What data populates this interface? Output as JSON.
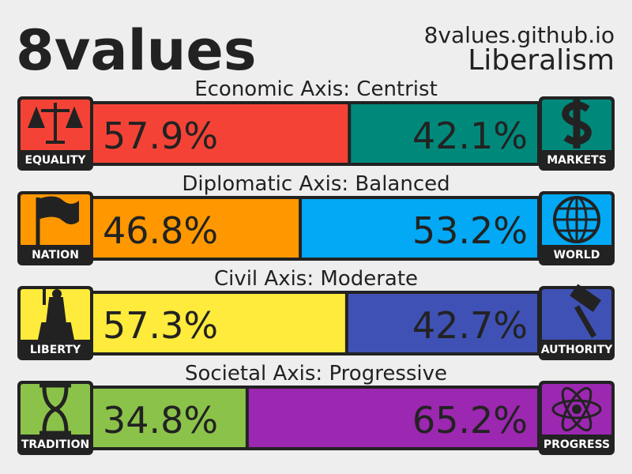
{
  "chart_data": {
    "type": "split-bar",
    "title": "8values",
    "subtitle": "8values.github.io",
    "annotation": "Liberalism",
    "axes": [
      {
        "label": "Economic Axis: Centrist",
        "left": {
          "name": "EQUALITY",
          "color": "#f44336",
          "value": 57.9,
          "value_label": "57.9%"
        },
        "right": {
          "name": "MARKETS",
          "color": "#00897b",
          "value": 42.1,
          "value_label": "42.1%"
        }
      },
      {
        "label": "Diplomatic Axis: Balanced",
        "left": {
          "name": "NATION",
          "color": "#ff9800",
          "value": 46.8,
          "value_label": "46.8%"
        },
        "right": {
          "name": "WORLD",
          "color": "#03a9f4",
          "value": 53.2,
          "value_label": "53.2%"
        }
      },
      {
        "label": "Civil Axis: Moderate",
        "left": {
          "name": "LIBERTY",
          "color": "#ffeb3b",
          "value": 57.3,
          "value_label": "57.3%"
        },
        "right": {
          "name": "AUTHORITY",
          "color": "#3f51b5",
          "value": 42.7,
          "value_label": "42.7%"
        }
      },
      {
        "label": "Societal Axis: Progressive",
        "left": {
          "name": "TRADITION",
          "color": "#8bc34a",
          "value": 34.8,
          "value_label": "34.8%"
        },
        "right": {
          "name": "PROGRESS",
          "color": "#9c27b0",
          "value": 65.2,
          "value_label": "65.2%"
        }
      }
    ]
  }
}
